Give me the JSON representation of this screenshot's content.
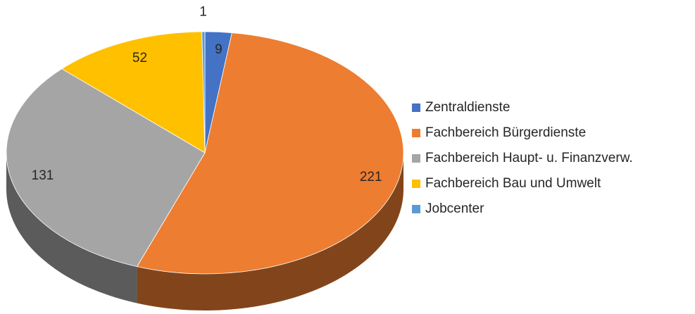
{
  "chart_data": {
    "type": "pie",
    "categories": [
      "Zentraldienste",
      "Fachbereich Bürgerdienste",
      "Fachbereich Haupt- u. Finanzverw.",
      "Fachbereich Bau und Umwelt",
      "Jobcenter"
    ],
    "values": [
      9,
      221,
      131,
      52,
      1
    ],
    "colors": [
      "#4472c4",
      "#ed7d31",
      "#a5a5a5",
      "#ffc000",
      "#5b9bd5"
    ],
    "legend": "right"
  }
}
